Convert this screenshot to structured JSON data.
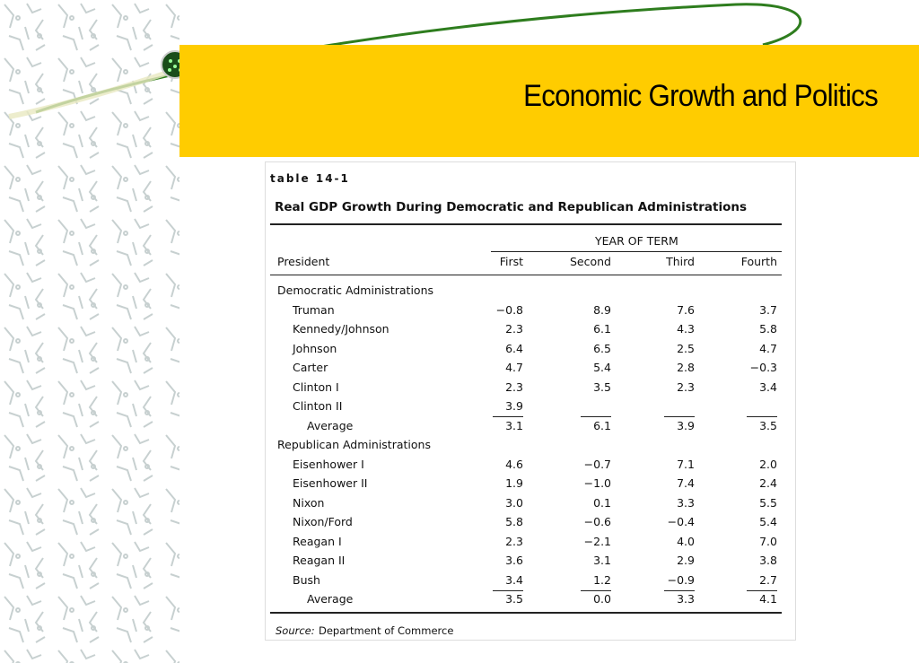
{
  "slide": {
    "title": "Economic Growth and Politics",
    "table": {
      "label": "table 14-1",
      "title": "Real GDP Growth During Democratic and Republican Administrations",
      "group_header": "YEAR OF TERM",
      "columns": [
        "President",
        "First",
        "Second",
        "Third",
        "Fourth"
      ],
      "sections": [
        {
          "name": "Democratic Administrations",
          "rows": [
            {
              "president": "Truman",
              "values": [
                "−0.8",
                "8.9",
                "7.6",
                "3.7"
              ]
            },
            {
              "president": "Kennedy/Johnson",
              "values": [
                "2.3",
                "6.1",
                "4.3",
                "5.8"
              ]
            },
            {
              "president": "Johnson",
              "values": [
                "6.4",
                "6.5",
                "2.5",
                "4.7"
              ]
            },
            {
              "president": "Carter",
              "values": [
                "4.7",
                "5.4",
                "2.8",
                "−0.3"
              ]
            },
            {
              "president": "Clinton I",
              "values": [
                "2.3",
                "3.5",
                "2.3",
                "3.4"
              ]
            },
            {
              "president": "Clinton II",
              "values": [
                "3.9",
                null,
                null,
                null
              ]
            }
          ],
          "average": {
            "label": "Average",
            "values": [
              "3.1",
              "6.1",
              "3.9",
              "3.5"
            ]
          }
        },
        {
          "name": "Republican Administrations",
          "rows": [
            {
              "president": "Eisenhower I",
              "values": [
                "4.6",
                "−0.7",
                "7.1",
                "2.0"
              ]
            },
            {
              "president": "Eisenhower II",
              "values": [
                "1.9",
                "−1.0",
                "7.4",
                "2.4"
              ]
            },
            {
              "president": "Nixon",
              "values": [
                "3.0",
                "0.1",
                "3.3",
                "5.5"
              ]
            },
            {
              "president": "Nixon/Ford",
              "values": [
                "5.8",
                "−0.6",
                "−0.4",
                "5.4"
              ]
            },
            {
              "president": "Reagan I",
              "values": [
                "2.3",
                "−2.1",
                "4.0",
                "7.0"
              ]
            },
            {
              "president": "Reagan II",
              "values": [
                "3.6",
                "3.1",
                "2.9",
                "3.8"
              ]
            },
            {
              "president": "Bush",
              "values": [
                "3.4",
                "1.2",
                "−0.9",
                "2.7"
              ]
            }
          ],
          "average": {
            "label": "Average",
            "values": [
              "3.5",
              "0.0",
              "3.3",
              "4.1"
            ]
          }
        }
      ],
      "source_label": "Source:",
      "source": "Department of Commerce"
    }
  }
}
